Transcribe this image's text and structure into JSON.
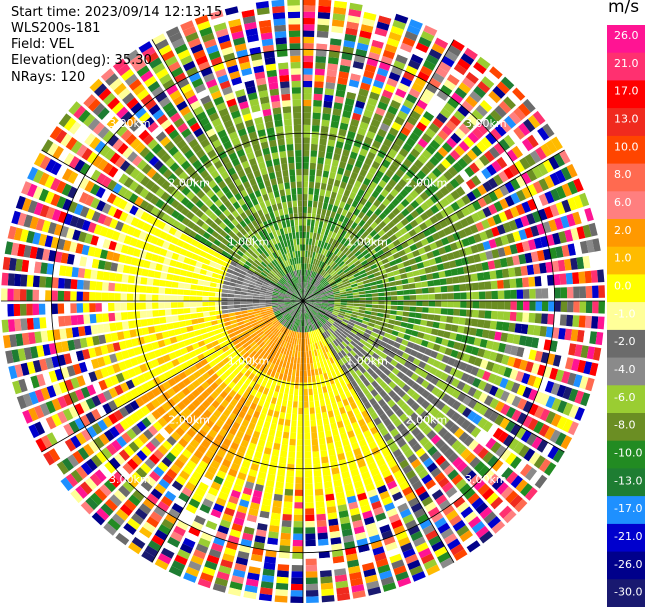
{
  "header": {
    "start_time": "Start time: 2023/09/14 12:13:15",
    "instrument": "WLS200s-181",
    "field": "Field: VEL",
    "elevation": "Elevation(deg): 35.30",
    "nrays": "NRays: 120"
  },
  "chart_data": {
    "type": "heatmap",
    "projection": "polar-ppi",
    "field": "VEL",
    "units": "m/s",
    "nrays": 120,
    "range_rings_km": [
      1.0,
      2.0,
      3.0
    ],
    "ring_labels": [
      "1.00km",
      "2.00km",
      "3.00km"
    ],
    "max_range_km": 3.6,
    "azimuth_lines_deg": [
      0,
      30,
      60,
      90,
      120,
      150,
      180,
      210,
      240,
      270,
      300,
      330
    ],
    "colorbar": {
      "label": "m/s",
      "ticks": [
        "26.0",
        "21.0",
        "17.0",
        "13.0",
        "10.0",
        "8.0",
        "6.0",
        "2.0",
        "1.0",
        "0.0",
        "-1.0",
        "-2.0",
        "-4.0",
        "-6.0",
        "-8.0",
        "-10.0",
        "-13.0",
        "-17.0",
        "-21.0",
        "-26.0",
        "-30.0"
      ],
      "colors": [
        "#ff1493",
        "#ff3070",
        "#ff0000",
        "#f02a1e",
        "#ff4500",
        "#ff6a50",
        "#ff7f7f",
        "#ff9900",
        "#ffbb00",
        "#ffff00",
        "#ffff99",
        "#6b6b6b",
        "#8a8a8a",
        "#9acd32",
        "#6b8e23",
        "#228b22",
        "#1e7d32",
        "#1e90ff",
        "#0000cd",
        "#00008b",
        "#191970"
      ]
    }
  }
}
